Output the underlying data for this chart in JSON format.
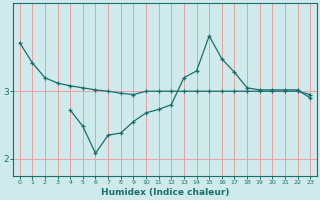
{
  "xlabel": "Humidex (Indice chaleur)",
  "background_color": "#ceeaea",
  "grid_color": "#e8a0a0",
  "line_color": "#1a6e6e",
  "x_ticks": [
    0,
    1,
    2,
    3,
    4,
    5,
    6,
    7,
    8,
    9,
    10,
    11,
    12,
    13,
    14,
    15,
    16,
    17,
    18,
    19,
    20,
    21,
    22,
    23
  ],
  "series1_x": [
    0,
    1,
    2,
    3,
    4,
    5,
    6,
    7,
    8,
    9,
    10,
    11,
    12,
    13,
    14,
    15,
    16,
    17,
    18,
    19,
    20,
    21,
    22,
    23
  ],
  "series1_y": [
    3.72,
    3.42,
    3.2,
    3.12,
    3.08,
    3.05,
    3.02,
    3.0,
    2.97,
    2.95,
    3.0,
    3.0,
    3.0,
    3.0,
    3.0,
    3.0,
    3.0,
    3.0,
    3.0,
    3.0,
    3.0,
    3.0,
    3.0,
    2.95
  ],
  "series2_x": [
    4,
    5,
    6,
    7,
    8,
    9,
    10,
    11,
    12,
    13,
    14,
    15,
    16,
    17,
    18,
    19,
    20,
    21,
    22,
    23
  ],
  "series2_y": [
    2.72,
    2.48,
    2.08,
    2.35,
    2.38,
    2.55,
    2.68,
    2.73,
    2.8,
    3.2,
    3.3,
    3.82,
    3.48,
    3.28,
    3.05,
    3.02,
    3.02,
    3.02,
    3.02,
    2.9
  ],
  "ylim": [
    1.75,
    4.3
  ],
  "yticks": [
    2,
    3
  ],
  "xlim": [
    -0.5,
    23.5
  ]
}
